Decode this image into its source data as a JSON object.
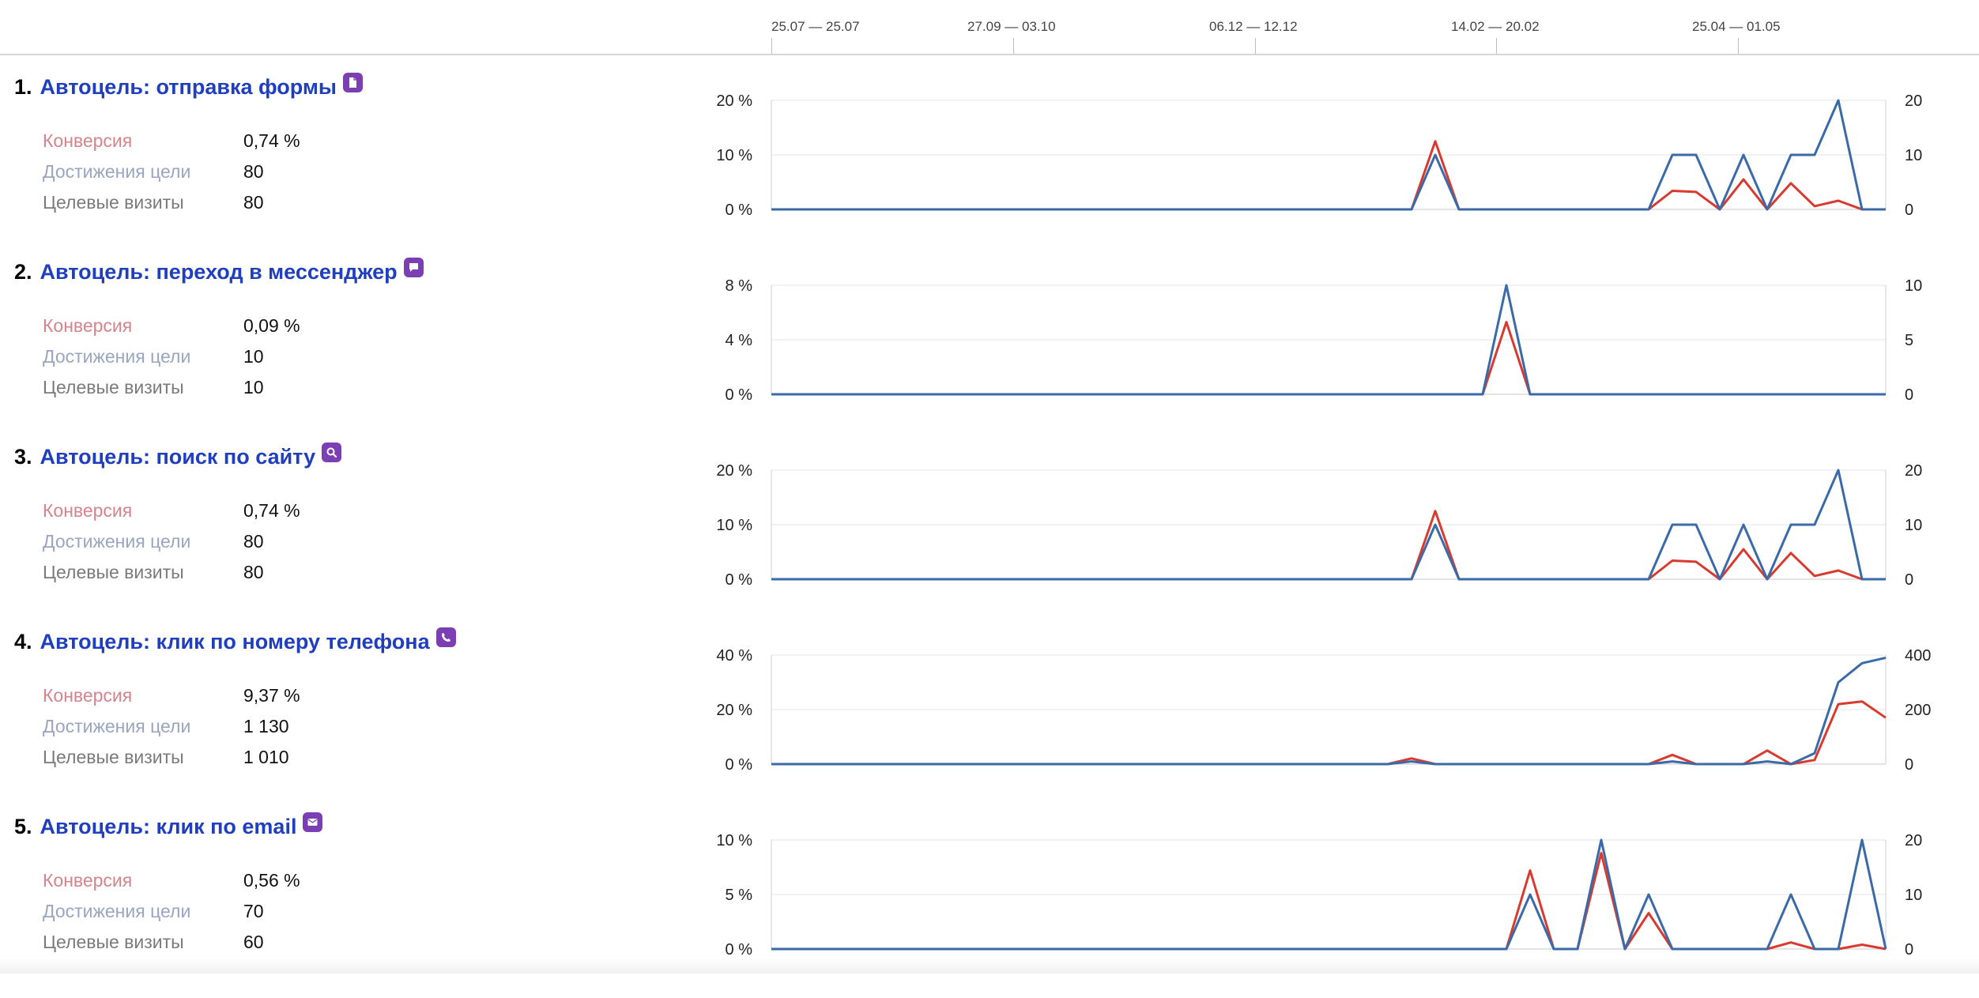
{
  "timeline": {
    "labels": [
      "25.07 — 25.07",
      "27.09 — 03.10",
      "06.12 — 12.12",
      "14.02 — 20.02",
      "25.04 — 01.05"
    ]
  },
  "colors": {
    "goal_title": "#1f3fbf",
    "conversion_label": "#d4848c",
    "achievements_label": "#9aa6bf",
    "visits_label": "#7a7a7a",
    "series_conversion": "#d93a2f",
    "series_achievements": "#3b6aa8",
    "goal_icon_bg": "#7b3fb3"
  },
  "goals": [
    {
      "number": "1.",
      "name": "Автоцель: отправка формы",
      "icon": "form-icon",
      "metrics": [
        {
          "label": "Конверсия",
          "value": "0,74 %"
        },
        {
          "label": "Достижения цели",
          "value": "80"
        },
        {
          "label": "Целевые визиты",
          "value": "80"
        }
      ],
      "chart_data": {
        "type": "line",
        "y_left_ticks": [
          "20 %",
          "10 %",
          "0 %"
        ],
        "y_left_max": 20,
        "y_right_ticks": [
          "20",
          "10",
          "0"
        ],
        "y_right_max": 20,
        "series": [
          {
            "key": "conversion",
            "axis": "left",
            "values": [
              0,
              0,
              0,
              0,
              0,
              0,
              0,
              0,
              0,
              0,
              0,
              0,
              0,
              0,
              0,
              0,
              0,
              0,
              0,
              0,
              0,
              0,
              0,
              0,
              0,
              0,
              0,
              0,
              12.5,
              0,
              0,
              0,
              0,
              0,
              0,
              0,
              0,
              0,
              3.4,
              3.2,
              0,
              5.5,
              0,
              4.8,
              0.6,
              1.6,
              0,
              0
            ]
          },
          {
            "key": "achievements",
            "axis": "right",
            "values": [
              0,
              0,
              0,
              0,
              0,
              0,
              0,
              0,
              0,
              0,
              0,
              0,
              0,
              0,
              0,
              0,
              0,
              0,
              0,
              0,
              0,
              0,
              0,
              0,
              0,
              0,
              0,
              0,
              10,
              0,
              0,
              0,
              0,
              0,
              0,
              0,
              0,
              0,
              10,
              10,
              0,
              10,
              0,
              10,
              10,
              20,
              0,
              0
            ]
          }
        ]
      }
    },
    {
      "number": "2.",
      "name": "Автоцель: переход в мессенджер",
      "icon": "chat-icon",
      "metrics": [
        {
          "label": "Конверсия",
          "value": "0,09 %"
        },
        {
          "label": "Достижения цели",
          "value": "10"
        },
        {
          "label": "Целевые визиты",
          "value": "10"
        }
      ],
      "chart_data": {
        "type": "line",
        "y_left_ticks": [
          "8 %",
          "4 %",
          "0 %"
        ],
        "y_left_max": 8,
        "y_right_ticks": [
          "10",
          "5",
          "0"
        ],
        "y_right_max": 10,
        "series": [
          {
            "key": "conversion",
            "axis": "left",
            "values": [
              0,
              0,
              0,
              0,
              0,
              0,
              0,
              0,
              0,
              0,
              0,
              0,
              0,
              0,
              0,
              0,
              0,
              0,
              0,
              0,
              0,
              0,
              0,
              0,
              0,
              0,
              0,
              0,
              0,
              0,
              0,
              5.3,
              0,
              0,
              0,
              0,
              0,
              0,
              0,
              0,
              0,
              0,
              0,
              0,
              0,
              0,
              0,
              0
            ]
          },
          {
            "key": "achievements",
            "axis": "right",
            "values": [
              0,
              0,
              0,
              0,
              0,
              0,
              0,
              0,
              0,
              0,
              0,
              0,
              0,
              0,
              0,
              0,
              0,
              0,
              0,
              0,
              0,
              0,
              0,
              0,
              0,
              0,
              0,
              0,
              0,
              0,
              0,
              10,
              0,
              0,
              0,
              0,
              0,
              0,
              0,
              0,
              0,
              0,
              0,
              0,
              0,
              0,
              0,
              0
            ]
          }
        ]
      }
    },
    {
      "number": "3.",
      "name": "Автоцель: поиск по сайту",
      "icon": "search-icon",
      "metrics": [
        {
          "label": "Конверсия",
          "value": "0,74 %"
        },
        {
          "label": "Достижения цели",
          "value": "80"
        },
        {
          "label": "Целевые визиты",
          "value": "80"
        }
      ],
      "chart_data": {
        "type": "line",
        "y_left_ticks": [
          "20 %",
          "10 %",
          "0 %"
        ],
        "y_left_max": 20,
        "y_right_ticks": [
          "20",
          "10",
          "0"
        ],
        "y_right_max": 20,
        "series": [
          {
            "key": "conversion",
            "axis": "left",
            "values": [
              0,
              0,
              0,
              0,
              0,
              0,
              0,
              0,
              0,
              0,
              0,
              0,
              0,
              0,
              0,
              0,
              0,
              0,
              0,
              0,
              0,
              0,
              0,
              0,
              0,
              0,
              0,
              0,
              12.5,
              0,
              0,
              0,
              0,
              0,
              0,
              0,
              0,
              0,
              3.4,
              3.2,
              0,
              5.5,
              0,
              4.8,
              0.6,
              1.6,
              0,
              0
            ]
          },
          {
            "key": "achievements",
            "axis": "right",
            "values": [
              0,
              0,
              0,
              0,
              0,
              0,
              0,
              0,
              0,
              0,
              0,
              0,
              0,
              0,
              0,
              0,
              0,
              0,
              0,
              0,
              0,
              0,
              0,
              0,
              0,
              0,
              0,
              0,
              10,
              0,
              0,
              0,
              0,
              0,
              0,
              0,
              0,
              0,
              10,
              10,
              0,
              10,
              0,
              10,
              10,
              20,
              0,
              0
            ]
          }
        ]
      }
    },
    {
      "number": "4.",
      "name": "Автоцель: клик по номеру телефона",
      "icon": "phone-icon",
      "metrics": [
        {
          "label": "Конверсия",
          "value": "9,37 %"
        },
        {
          "label": "Достижения цели",
          "value": "1 130"
        },
        {
          "label": "Целевые визиты",
          "value": "1 010"
        }
      ],
      "chart_data": {
        "type": "line",
        "y_left_ticks": [
          "40 %",
          "20 %",
          "0 %"
        ],
        "y_left_max": 40,
        "y_right_ticks": [
          "400",
          "200",
          "0"
        ],
        "y_right_max": 400,
        "series": [
          {
            "key": "conversion",
            "axis": "left",
            "values": [
              0,
              0,
              0,
              0,
              0,
              0,
              0,
              0,
              0,
              0,
              0,
              0,
              0,
              0,
              0,
              0,
              0,
              0,
              0,
              0,
              0,
              0,
              0,
              0,
              0,
              0,
              0,
              2.1,
              0,
              0,
              0,
              0,
              0,
              0,
              0,
              0,
              0,
              0,
              3.4,
              0,
              0,
              0,
              5,
              0,
              1.5,
              22,
              23,
              17
            ]
          },
          {
            "key": "achievements",
            "axis": "right",
            "values": [
              0,
              0,
              0,
              0,
              0,
              0,
              0,
              0,
              0,
              0,
              0,
              0,
              0,
              0,
              0,
              0,
              0,
              0,
              0,
              0,
              0,
              0,
              0,
              0,
              0,
              0,
              0,
              10,
              0,
              0,
              0,
              0,
              0,
              0,
              0,
              0,
              0,
              0,
              10,
              0,
              0,
              0,
              10,
              0,
              40,
              300,
              370,
              390
            ]
          }
        ]
      }
    },
    {
      "number": "5.",
      "name": "Автоцель: клик по email",
      "icon": "mail-icon",
      "metrics": [
        {
          "label": "Конверсия",
          "value": "0,56 %"
        },
        {
          "label": "Достижения цели",
          "value": "70"
        },
        {
          "label": "Целевые визиты",
          "value": "60"
        }
      ],
      "chart_data": {
        "type": "line",
        "y_left_ticks": [
          "10 %",
          "5 %",
          "0 %"
        ],
        "y_left_max": 10,
        "y_right_ticks": [
          "20",
          "10",
          "0"
        ],
        "y_right_max": 20,
        "series": [
          {
            "key": "conversion",
            "axis": "left",
            "values": [
              0,
              0,
              0,
              0,
              0,
              0,
              0,
              0,
              0,
              0,
              0,
              0,
              0,
              0,
              0,
              0,
              0,
              0,
              0,
              0,
              0,
              0,
              0,
              0,
              0,
              0,
              0,
              0,
              0,
              0,
              0,
              0,
              7.2,
              0,
              0,
              8.8,
              0,
              3.3,
              0,
              0,
              0,
              0,
              0,
              0.6,
              0,
              0,
              0.4,
              0
            ]
          },
          {
            "key": "achievements",
            "axis": "right",
            "values": [
              0,
              0,
              0,
              0,
              0,
              0,
              0,
              0,
              0,
              0,
              0,
              0,
              0,
              0,
              0,
              0,
              0,
              0,
              0,
              0,
              0,
              0,
              0,
              0,
              0,
              0,
              0,
              0,
              0,
              0,
              0,
              0,
              10,
              0,
              0,
              20,
              0,
              10,
              0,
              0,
              0,
              0,
              0,
              10,
              0,
              0,
              20,
              0
            ]
          }
        ]
      }
    }
  ]
}
